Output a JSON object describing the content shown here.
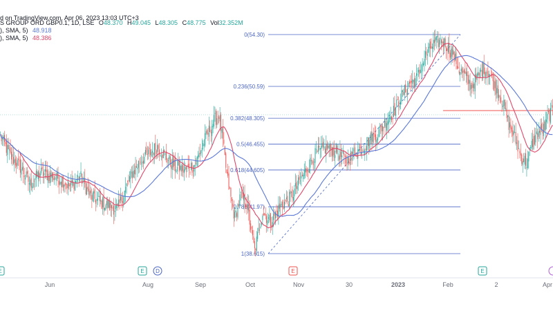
{
  "header": {
    "watermark": "d on TradingView.com, Apr 06, 2023 13:03 UTC+3",
    "symbol": "S GROUP ORD GBP0.1, 1D, LSE",
    "ohlc": {
      "o_label": "O",
      "o": "48.370",
      "h_label": "H",
      "h": "49.045",
      "l_label": "L",
      "l": "48.305",
      "c_label": "C",
      "c": "48.775",
      "vol_label": "Vol",
      "vol": "32.352M"
    },
    "ma1": {
      "text": "), SMA, 5)",
      "value": "48.918"
    },
    "ma2": {
      "text": "), SMA, 5)",
      "value": "48.386"
    }
  },
  "colors": {
    "up": "#26a69a",
    "down": "#ef5350",
    "ma_fast": "#e0476a",
    "ma_slow": "#5b78d6",
    "fib": "#4a64c4",
    "axis": "#6a6d78"
  },
  "chart_data": {
    "type": "candlestick",
    "x_ticks": [
      "Jun",
      "Aug",
      "Sep",
      "Oct",
      "Nov",
      "30",
      "2023",
      "Feb",
      "2",
      "Apr"
    ],
    "fib_levels": [
      {
        "label": "0(54.30)",
        "price": 54.3
      },
      {
        "label": "0.236(50.59)",
        "price": 50.59
      },
      {
        "label": "0.382(48.305)",
        "price": 48.305
      },
      {
        "label": "0.5(46.455)",
        "price": 46.455
      },
      {
        "label": "0.618(44.605)",
        "price": 44.605
      },
      {
        "label": "0.786(41.97)",
        "price": 41.97
      },
      {
        "label": "1(38.615)",
        "price": 38.615
      }
    ],
    "event_markers": [
      {
        "label": "E",
        "position": "Jun-start"
      },
      {
        "label": "E",
        "position": "Jul-end"
      },
      {
        "label": "D",
        "position": "Jul-end"
      },
      {
        "label": "E",
        "position": "Oct-end"
      },
      {
        "label": "E",
        "position": "Mar-start"
      }
    ],
    "series": [
      {
        "name": "SMA fast",
        "color": "#e0476a"
      },
      {
        "name": "SMA slow",
        "color": "#5b78d6"
      }
    ],
    "waypoints": [
      [
        0,
        47.0
      ],
      [
        10,
        45.6
      ],
      [
        20,
        44.8
      ],
      [
        30,
        43.6
      ],
      [
        40,
        44.4
      ],
      [
        50,
        44.2
      ],
      [
        60,
        44.0
      ],
      [
        70,
        43.4
      ],
      [
        80,
        44.2
      ],
      [
        90,
        42.8
      ],
      [
        100,
        42.3
      ],
      [
        110,
        42.0
      ],
      [
        118,
        41.8
      ],
      [
        130,
        44.0
      ],
      [
        140,
        45.2
      ],
      [
        150,
        45.8
      ],
      [
        158,
        46.3
      ],
      [
        168,
        45.4
      ],
      [
        176,
        44.8
      ],
      [
        186,
        44.6
      ],
      [
        196,
        45.0
      ],
      [
        206,
        46.8
      ],
      [
        214,
        48.0
      ],
      [
        220,
        48.6
      ],
      [
        224,
        46.6
      ],
      [
        228,
        44.2
      ],
      [
        232,
        42.6
      ],
      [
        236,
        41.2
      ],
      [
        242,
        42.8
      ],
      [
        248,
        42.2
      ],
      [
        256,
        38.8
      ],
      [
        264,
        41.6
      ],
      [
        272,
        40.9
      ],
      [
        282,
        42.0
      ],
      [
        292,
        42.6
      ],
      [
        300,
        43.6
      ],
      [
        310,
        44.9
      ],
      [
        318,
        45.8
      ],
      [
        328,
        46.2
      ],
      [
        338,
        46.0
      ],
      [
        348,
        45.2
      ],
      [
        356,
        45.9
      ],
      [
        364,
        46.1
      ],
      [
        372,
        46.8
      ],
      [
        380,
        47.2
      ],
      [
        388,
        48.1
      ],
      [
        396,
        48.8
      ],
      [
        404,
        49.9
      ],
      [
        412,
        50.8
      ],
      [
        420,
        51.2
      ],
      [
        428,
        52.8
      ],
      [
        436,
        53.6
      ],
      [
        444,
        53.9
      ],
      [
        450,
        53.5
      ],
      [
        456,
        52.8
      ],
      [
        462,
        51.8
      ],
      [
        468,
        51.3
      ],
      [
        474,
        50.6
      ],
      [
        480,
        51.2
      ],
      [
        486,
        51.9
      ],
      [
        492,
        51.6
      ],
      [
        498,
        50.6
      ],
      [
        504,
        49.9
      ],
      [
        508,
        48.9
      ],
      [
        512,
        47.9
      ],
      [
        518,
        46.9
      ],
      [
        524,
        45.6
      ],
      [
        530,
        45.1
      ],
      [
        536,
        46.6
      ],
      [
        542,
        47.3
      ],
      [
        548,
        47.6
      ],
      [
        552,
        48.5
      ],
      [
        556,
        48.8
      ]
    ]
  }
}
